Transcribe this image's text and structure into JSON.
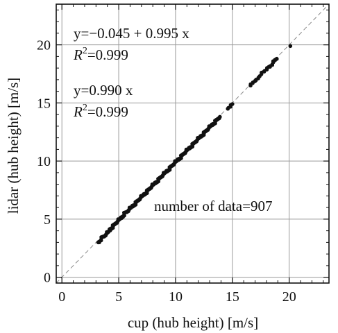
{
  "chart_data": {
    "type": "scatter",
    "xlabel": "cup (hub height) [m/s]",
    "ylabel": "lidar (hub height) [m/s]",
    "xlim": [
      -0.5,
      23.5
    ],
    "ylim": [
      -0.5,
      23.5
    ],
    "xticks": [
      0,
      5,
      10,
      15,
      20
    ],
    "yticks": [
      0,
      5,
      10,
      15,
      20
    ],
    "grid": true,
    "reference_line": {
      "slope": 1,
      "intercept": 0,
      "style": "dashed"
    },
    "annotations": [
      {
        "id": "fit1_eq",
        "text": "y=−0.045 + 0.995 x"
      },
      {
        "id": "fit1_r2_prefix",
        "text": "R"
      },
      {
        "id": "fit1_r2_sup",
        "text": "2"
      },
      {
        "id": "fit1_r2_value",
        "text": "=0.999"
      },
      {
        "id": "fit2_eq",
        "text": "y=0.990 x"
      },
      {
        "id": "fit2_r2_prefix",
        "text": "R"
      },
      {
        "id": "fit2_r2_sup",
        "text": "2"
      },
      {
        "id": "fit2_r2_value",
        "text": "=0.999"
      },
      {
        "id": "count",
        "text": "number of  data=907"
      }
    ],
    "fits": [
      {
        "slope": 0.995,
        "intercept": -0.045,
        "r2": 0.999
      },
      {
        "slope": 0.99,
        "intercept": 0,
        "r2": 0.999
      }
    ],
    "series": [
      {
        "points": [
          [
            3.2,
            3.0
          ],
          [
            3.5,
            3.4
          ],
          [
            3.7,
            3.5
          ],
          [
            3.9,
            3.7
          ],
          [
            4.1,
            3.9
          ],
          [
            4.3,
            4.2
          ],
          [
            4.5,
            4.4
          ],
          [
            4.7,
            4.6
          ],
          [
            4.9,
            4.8
          ],
          [
            5.1,
            5.0
          ],
          [
            5.3,
            5.2
          ],
          [
            5.5,
            5.5
          ],
          [
            5.7,
            5.6
          ],
          [
            5.9,
            5.8
          ],
          [
            6.1,
            6.0
          ],
          [
            6.3,
            6.2
          ],
          [
            6.5,
            6.4
          ],
          [
            6.7,
            6.6
          ],
          [
            6.9,
            6.8
          ],
          [
            7.1,
            7.0
          ],
          [
            7.3,
            7.2
          ],
          [
            7.5,
            7.4
          ],
          [
            7.7,
            7.6
          ],
          [
            7.9,
            7.8
          ],
          [
            8.1,
            8.0
          ],
          [
            8.3,
            8.2
          ],
          [
            8.5,
            8.4
          ],
          [
            8.7,
            8.6
          ],
          [
            8.9,
            8.8
          ],
          [
            9.1,
            9.0
          ],
          [
            9.3,
            9.2
          ],
          [
            9.5,
            9.4
          ],
          [
            9.7,
            9.6
          ],
          [
            9.9,
            9.8
          ],
          [
            10.1,
            10.0
          ],
          [
            10.3,
            10.2
          ],
          [
            10.5,
            10.4
          ],
          [
            10.7,
            10.6
          ],
          [
            10.9,
            10.8
          ],
          [
            11.1,
            11.0
          ],
          [
            11.3,
            11.2
          ],
          [
            11.5,
            11.4
          ],
          [
            11.7,
            11.6
          ],
          [
            11.9,
            11.8
          ],
          [
            12.1,
            12.0
          ],
          [
            12.3,
            12.2
          ],
          [
            12.5,
            12.4
          ],
          [
            12.7,
            12.6
          ],
          [
            12.9,
            12.8
          ],
          [
            13.1,
            13.0
          ],
          [
            13.3,
            13.2
          ],
          [
            13.5,
            13.4
          ],
          [
            13.7,
            13.6
          ],
          [
            13.9,
            13.8
          ],
          [
            14.6,
            14.5
          ],
          [
            15.0,
            14.9
          ],
          [
            16.6,
            16.5
          ],
          [
            17.0,
            16.9
          ],
          [
            17.4,
            17.3
          ],
          [
            17.8,
            17.7
          ],
          [
            18.2,
            18.1
          ],
          [
            18.6,
            18.5
          ],
          [
            18.9,
            18.8
          ],
          [
            20.1,
            19.9
          ]
        ]
      }
    ]
  }
}
